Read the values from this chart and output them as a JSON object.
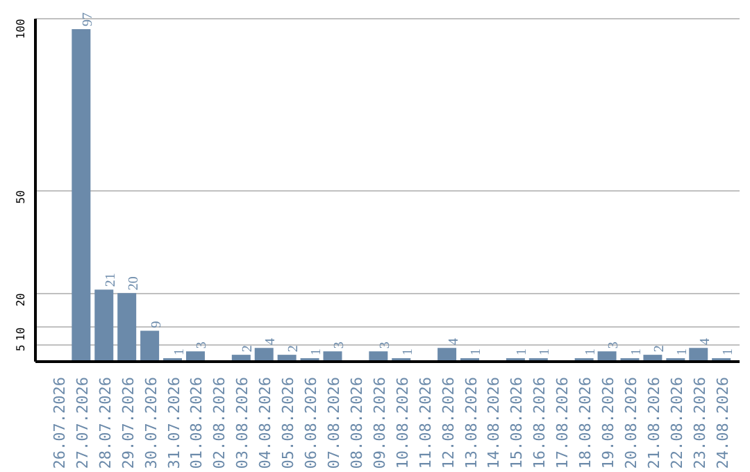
{
  "chart_data": {
    "type": "bar",
    "categories": [
      "26.07.2026",
      "27.07.2026",
      "28.07.2026",
      "29.07.2026",
      "30.07.2026",
      "31.07.2026",
      "01.08.2026",
      "02.08.2026",
      "03.08.2026",
      "04.08.2026",
      "05.08.2026",
      "06.08.2026",
      "07.08.2026",
      "08.08.2026",
      "09.08.2026",
      "10.08.2026",
      "11.08.2026",
      "12.08.2026",
      "13.08.2026",
      "14.08.2026",
      "15.08.2026",
      "16.08.2026",
      "17.08.2026",
      "18.08.2026",
      "19.08.2026",
      "20.08.2026",
      "21.08.2026",
      "22.08.2026",
      "23.08.2026",
      "24.08.2026"
    ],
    "values": [
      null,
      97,
      21,
      20,
      9,
      1,
      3,
      null,
      2,
      4,
      2,
      1,
      3,
      null,
      3,
      1,
      null,
      4,
      1,
      null,
      1,
      1,
      null,
      1,
      3,
      1,
      2,
      1,
      4,
      1
    ],
    "color": "#6b8aaa",
    "ylim": [
      0,
      100
    ],
    "yticks": [
      5,
      10,
      20,
      50,
      100
    ],
    "grid": "y",
    "data_labels": true
  }
}
